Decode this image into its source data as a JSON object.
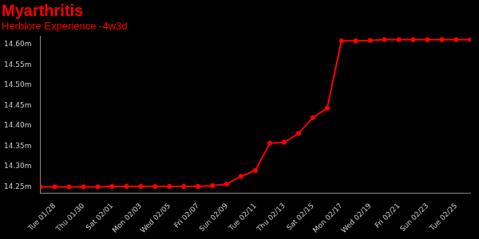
{
  "chart_data": {
    "type": "line",
    "title": "Myarthritis",
    "subtitle": "Herblore Experience -4w3d",
    "categories": [
      null,
      "Tue 01/28",
      null,
      "Thu 01/30",
      null,
      "Sat 02/01",
      null,
      "Mon 02/03",
      null,
      "Wed 02/05",
      null,
      "Fri 02/07",
      null,
      "Sun 02/09",
      null,
      "Tue 02/11",
      null,
      "Thu 02/13",
      null,
      "Sat 02/15",
      null,
      "Mon 02/17",
      null,
      "Wed 02/19",
      null,
      "Fri 02/21",
      null,
      "Sun 02/23",
      null,
      "Tue 02/25",
      null
    ],
    "values": [
      14.25,
      14.25,
      14.25,
      14.25,
      14.25,
      14.251,
      14.251,
      14.251,
      14.251,
      14.251,
      14.251,
      14.251,
      14.253,
      14.257,
      14.276,
      14.29,
      14.357,
      14.359,
      14.381,
      14.42,
      14.443,
      14.609,
      14.609,
      14.61,
      14.612,
      14.612,
      14.612,
      14.612,
      14.612,
      14.612,
      14.612
    ],
    "color": "#ff0000",
    "marker": "circle",
    "ylim": [
      14.235,
      14.62
    ],
    "yticks": [
      {
        "value": 14.25,
        "label": "14.25m"
      },
      {
        "value": 14.3,
        "label": "14.30m"
      },
      {
        "value": 14.35,
        "label": "14.35m"
      },
      {
        "value": 14.4,
        "label": "14.40m"
      },
      {
        "value": 14.45,
        "label": "14.45m"
      },
      {
        "value": 14.5,
        "label": "14.50m"
      },
      {
        "value": 14.55,
        "label": "14.55m"
      },
      {
        "value": 14.6,
        "label": "14.60m"
      }
    ],
    "grid": false
  }
}
